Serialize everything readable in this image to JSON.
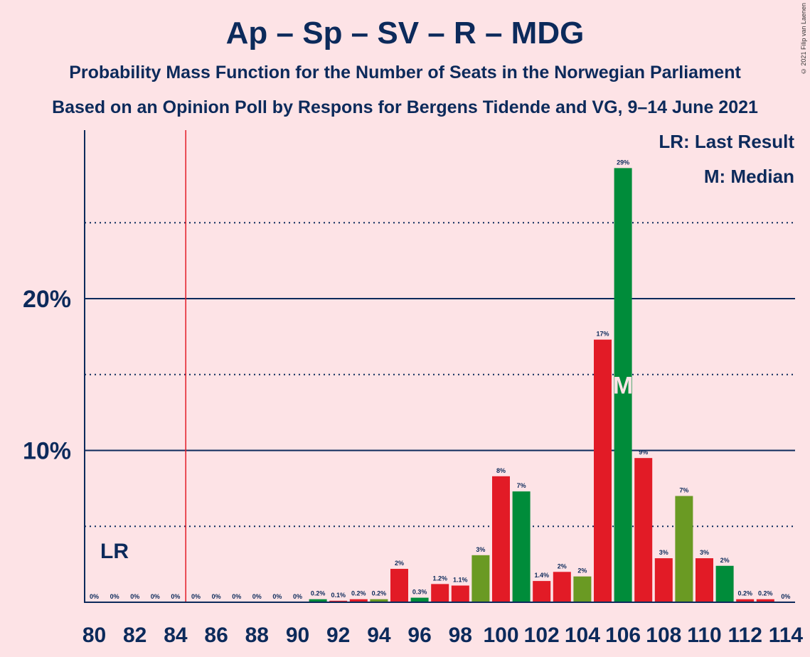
{
  "title": "Ap – Sp – SV – R – MDG",
  "subtitle_1": "Probability Mass Function for the Number of Seats in the Norwegian Parliament",
  "subtitle_2": "Based on an Opinion Poll by Respons for Bergens Tidende and VG, 9–14 June 2021",
  "copyright": "© 2021 Filip van Laenen",
  "legend": {
    "last_result": "LR: Last Result",
    "median": "M: Median"
  },
  "colors": {
    "background": "#fde3e6",
    "text": "#0c2a5b",
    "red": "#e21b26",
    "green": "#008c3a",
    "olive": "#6a9a23",
    "last_result_line": "#e21b26"
  },
  "chart_data": {
    "type": "bar",
    "title": "Ap – Sp – SV – R – MDG",
    "xlabel": "",
    "ylabel": "",
    "x": [
      80,
      81,
      82,
      83,
      84,
      85,
      86,
      87,
      88,
      89,
      90,
      91,
      92,
      93,
      94,
      95,
      96,
      97,
      98,
      99,
      100,
      101,
      102,
      103,
      104,
      105,
      106,
      107,
      108,
      109,
      110,
      111,
      112,
      113,
      114
    ],
    "values": [
      0,
      0,
      0,
      0,
      0,
      0,
      0,
      0,
      0,
      0,
      0,
      0.2,
      0.1,
      0.2,
      0.2,
      2.2,
      0.3,
      1.2,
      1.1,
      3.1,
      8.3,
      7.3,
      1.4,
      2.0,
      1.7,
      17.3,
      28.6,
      9.5,
      2.9,
      7.0,
      2.9,
      2.4,
      0.2,
      0.2,
      0
    ],
    "labels": [
      "0%",
      "0%",
      "0%",
      "0%",
      "0%",
      "0%",
      "0%",
      "0%",
      "0%",
      "0%",
      "0%",
      "0.2%",
      "0.1%",
      "0.2%",
      "0.2%",
      "2%",
      "0.3%",
      "1.2%",
      "1.1%",
      "3%",
      "8%",
      "7%",
      "1.4%",
      "2%",
      "2%",
      "17%",
      "29%",
      "9%",
      "3%",
      "7%",
      "3%",
      "2%",
      "0.2%",
      "0.2%",
      "0%"
    ],
    "bar_colors": [
      "red",
      "red",
      "red",
      "red",
      "red",
      "red",
      "red",
      "red",
      "red",
      "red",
      "red",
      "green",
      "red",
      "red",
      "olive",
      "red",
      "green",
      "red",
      "red",
      "olive",
      "red",
      "green",
      "red",
      "red",
      "olive",
      "red",
      "green",
      "red",
      "red",
      "olive",
      "red",
      "green",
      "red",
      "red",
      "red"
    ],
    "x_tick_labels": [
      "80",
      "82",
      "84",
      "86",
      "88",
      "90",
      "92",
      "94",
      "96",
      "98",
      "100",
      "102",
      "104",
      "106",
      "108",
      "110",
      "112",
      "114"
    ],
    "x_tick_values": [
      80,
      82,
      84,
      86,
      88,
      90,
      92,
      94,
      96,
      98,
      100,
      102,
      104,
      106,
      108,
      110,
      112,
      114
    ],
    "y_tick_labels": [
      "10%",
      "20%"
    ],
    "y_tick_values": [
      10,
      20
    ],
    "y_dotted_gridlines": [
      5,
      15,
      25
    ],
    "ylim": [
      0,
      31
    ],
    "last_result": 85,
    "last_result_label": "LR",
    "median": 106,
    "median_label": "M"
  }
}
